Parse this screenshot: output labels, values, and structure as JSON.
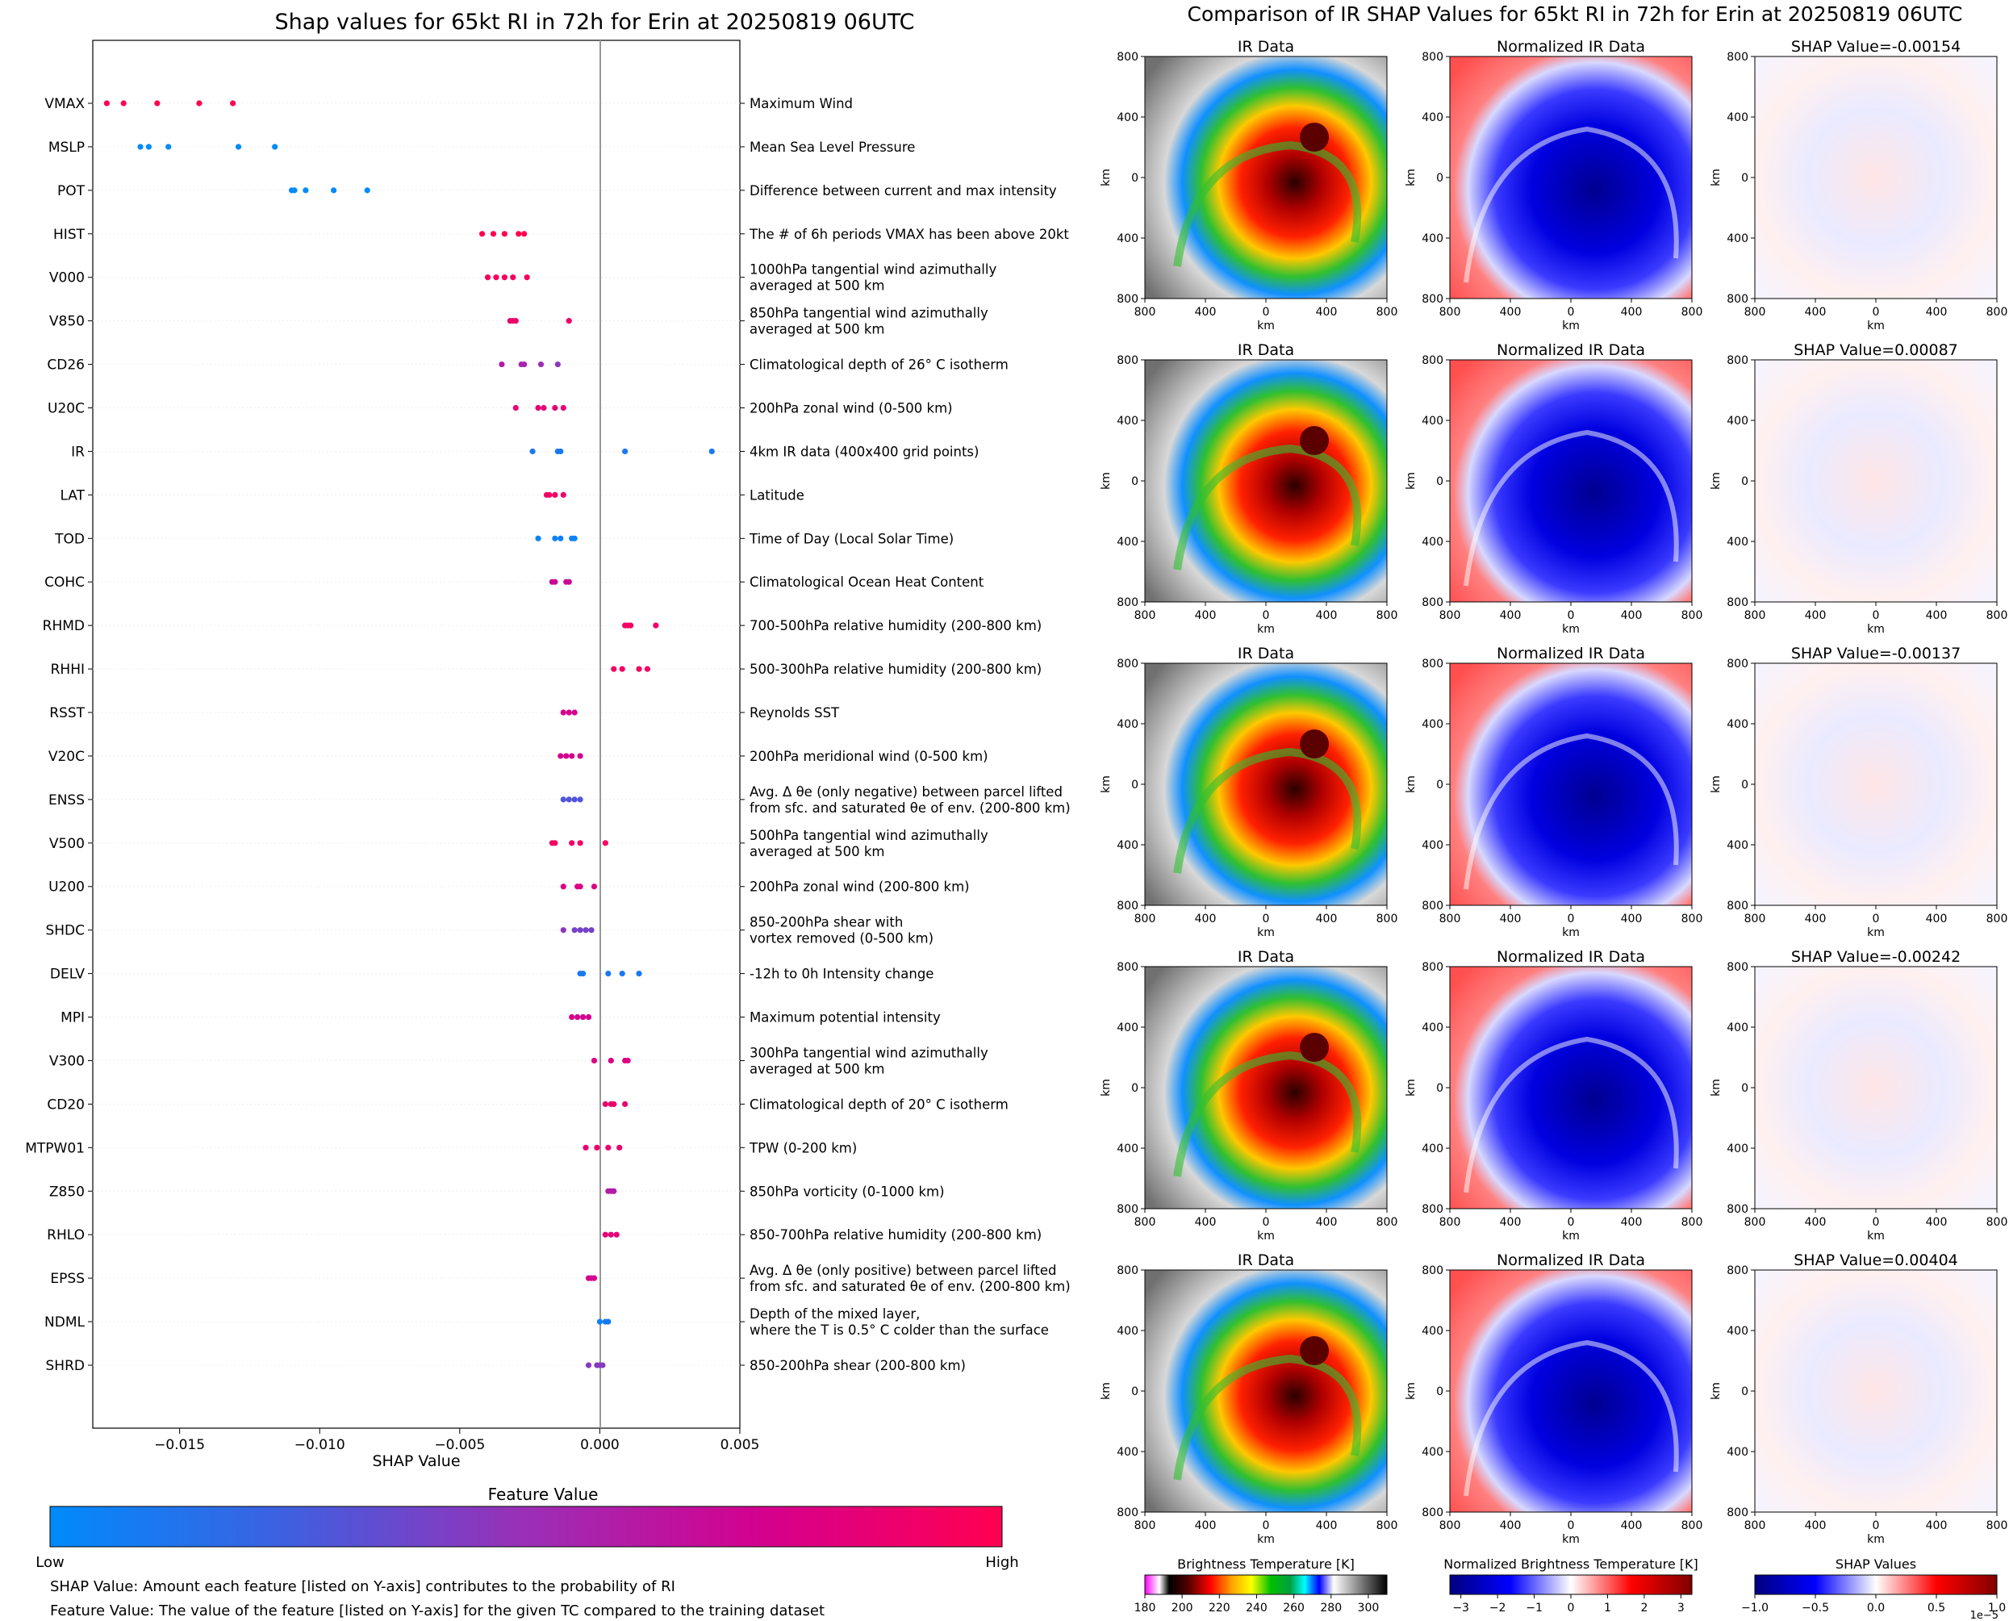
{
  "left_title": "Shap values for 65kt RI in 72h for Erin at 20250819 06UTC",
  "right_title": "Comparison of IR SHAP Values for 65kt RI in 72h for Erin at 20250819 06UTC",
  "chart_data": [
    {
      "type": "scatter",
      "title": "Shap values for 65kt RI in 72h for Erin at 20250819 06UTC",
      "xlabel": "SHAP Value",
      "xlim": [
        -0.0181,
        0.005
      ],
      "xticks": [
        "−0.015",
        "−0.010",
        "−0.005",
        "0.000",
        "0.005"
      ],
      "xtick_values": [
        -0.015,
        -0.01,
        -0.005,
        0.0,
        0.005
      ],
      "grid": false,
      "colorbar": {
        "title": "Feature Value",
        "low": "Low",
        "high": "High",
        "colors": [
          "#008bfb",
          "#3f5fe0",
          "#9b2fb6",
          "#d5008e",
          "#ff0051"
        ]
      },
      "features": [
        {
          "name": "VMAX",
          "desc": [
            "Maximum Wind"
          ],
          "points": [
            [
              -0.0176,
              1.0
            ],
            [
              -0.017,
              1.0
            ],
            [
              -0.0158,
              1.0
            ],
            [
              -0.0143,
              1.0
            ],
            [
              -0.0131,
              1.0
            ]
          ]
        },
        {
          "name": "MSLP",
          "desc": [
            "Mean Sea Level Pressure"
          ],
          "points": [
            [
              -0.0164,
              0.0
            ],
            [
              -0.0161,
              0.0
            ],
            [
              -0.0154,
              0.0
            ],
            [
              -0.0129,
              0.0
            ],
            [
              -0.0116,
              0.0
            ]
          ]
        },
        {
          "name": "POT",
          "desc": [
            "Difference between current and max intensity"
          ],
          "points": [
            [
              -0.011,
              0.0
            ],
            [
              -0.0109,
              0.0
            ],
            [
              -0.0105,
              0.0
            ],
            [
              -0.0095,
              0.0
            ],
            [
              -0.0083,
              0.0
            ]
          ]
        },
        {
          "name": "HIST",
          "desc": [
            "The # of 6h periods VMAX has been above 20kt"
          ],
          "points": [
            [
              -0.0042,
              1.0
            ],
            [
              -0.0038,
              1.0
            ],
            [
              -0.0034,
              1.0
            ],
            [
              -0.0029,
              1.0
            ],
            [
              -0.0027,
              1.0
            ]
          ]
        },
        {
          "name": "V000",
          "desc": [
            "1000hPa tangential wind azimuthally",
            "averaged at 500 km"
          ],
          "points": [
            [
              -0.004,
              0.95
            ],
            [
              -0.0037,
              0.95
            ],
            [
              -0.0034,
              0.95
            ],
            [
              -0.0031,
              0.95
            ],
            [
              -0.0026,
              0.95
            ]
          ]
        },
        {
          "name": "V850",
          "desc": [
            "850hPa tangential wind azimuthally",
            "averaged at 500 km"
          ],
          "points": [
            [
              -0.0032,
              0.9
            ],
            [
              -0.0031,
              0.9
            ],
            [
              -0.003,
              0.9
            ],
            [
              -0.0011,
              0.9
            ]
          ]
        },
        {
          "name": "CD26",
          "desc": [
            "Climatological depth of 26° C isotherm"
          ],
          "points": [
            [
              -0.0035,
              0.6
            ],
            [
              -0.0028,
              0.55
            ],
            [
              -0.0027,
              0.55
            ],
            [
              -0.0021,
              0.5
            ],
            [
              -0.0015,
              0.45
            ]
          ]
        },
        {
          "name": "U20C",
          "desc": [
            "200hPa zonal wind (0-500 km)"
          ],
          "points": [
            [
              -0.003,
              0.85
            ],
            [
              -0.0022,
              0.85
            ],
            [
              -0.002,
              0.85
            ],
            [
              -0.0016,
              0.85
            ],
            [
              -0.0013,
              0.85
            ]
          ]
        },
        {
          "name": "IR",
          "desc": [
            "4km IR data (400x400 grid points)"
          ],
          "points": [
            [
              -0.0024,
              0.1
            ],
            [
              -0.0015,
              0.1
            ],
            [
              -0.0014,
              0.1
            ],
            [
              0.0009,
              0.1
            ],
            [
              0.004,
              0.1
            ]
          ]
        },
        {
          "name": "LAT",
          "desc": [
            "Latitude"
          ],
          "points": [
            [
              -0.0019,
              0.92
            ],
            [
              -0.0018,
              0.92
            ],
            [
              -0.0016,
              0.92
            ],
            [
              -0.0013,
              0.92
            ]
          ]
        },
        {
          "name": "TOD",
          "desc": [
            "Time of Day (Local Solar Time)"
          ],
          "points": [
            [
              -0.0022,
              0.05
            ],
            [
              -0.0016,
              0.05
            ],
            [
              -0.0014,
              0.05
            ],
            [
              -0.001,
              0.05
            ],
            [
              -0.0009,
              0.05
            ]
          ]
        },
        {
          "name": "COHC",
          "desc": [
            "Climatological Ocean Heat Content"
          ],
          "points": [
            [
              -0.0017,
              0.7
            ],
            [
              -0.0016,
              0.7
            ],
            [
              -0.0012,
              0.7
            ],
            [
              -0.0011,
              0.7
            ]
          ]
        },
        {
          "name": "RHMD",
          "desc": [
            "700-500hPa relative humidity (200-800 km)"
          ],
          "points": [
            [
              0.0009,
              0.93
            ],
            [
              0.001,
              0.93
            ],
            [
              0.0011,
              0.93
            ],
            [
              0.002,
              0.93
            ]
          ]
        },
        {
          "name": "RHHI",
          "desc": [
            "500-300hPa relative humidity (200-800 km)"
          ],
          "points": [
            [
              0.0005,
              0.93
            ],
            [
              0.0008,
              0.93
            ],
            [
              0.0014,
              0.93
            ],
            [
              0.0017,
              0.93
            ]
          ]
        },
        {
          "name": "RSST",
          "desc": [
            "Reynolds SST"
          ],
          "points": [
            [
              -0.0013,
              0.75
            ],
            [
              -0.0011,
              0.75
            ],
            [
              -0.0009,
              0.75
            ]
          ]
        },
        {
          "name": "V20C",
          "desc": [
            "200hPa meridional wind (0-500 km)"
          ],
          "points": [
            [
              -0.0014,
              0.75
            ],
            [
              -0.0012,
              0.75
            ],
            [
              -0.001,
              0.75
            ],
            [
              -0.0007,
              0.75
            ]
          ]
        },
        {
          "name": "ENSS",
          "desc": [
            "Avg. Δ θe (only negative) between parcel lifted",
            "from sfc. and saturated θe of env. (200-800 km)"
          ],
          "points": [
            [
              -0.0013,
              0.3
            ],
            [
              -0.0011,
              0.3
            ],
            [
              -0.0009,
              0.3
            ],
            [
              -0.0007,
              0.3
            ]
          ]
        },
        {
          "name": "V500",
          "desc": [
            "500hPa tangential wind azimuthally",
            "averaged at 500 km"
          ],
          "points": [
            [
              -0.0017,
              0.93
            ],
            [
              -0.0016,
              0.93
            ],
            [
              -0.001,
              0.93
            ],
            [
              -0.0007,
              0.93
            ],
            [
              0.0002,
              0.93
            ]
          ]
        },
        {
          "name": "U200",
          "desc": [
            "200hPa zonal wind (200-800 km)"
          ],
          "points": [
            [
              -0.0013,
              0.8
            ],
            [
              -0.0008,
              0.8
            ],
            [
              -0.0007,
              0.8
            ],
            [
              -0.0002,
              0.8
            ]
          ]
        },
        {
          "name": "SHDC",
          "desc": [
            "850-200hPa shear with",
            "vortex removed (0-500 km)"
          ],
          "points": [
            [
              -0.0013,
              0.45
            ],
            [
              -0.0009,
              0.4
            ],
            [
              -0.0007,
              0.4
            ],
            [
              -0.0005,
              0.4
            ],
            [
              -0.0003,
              0.4
            ]
          ]
        },
        {
          "name": "DELV",
          "desc": [
            "-12h to 0h Intensity change"
          ],
          "points": [
            [
              -0.0007,
              0.1
            ],
            [
              -0.0006,
              0.1
            ],
            [
              0.0003,
              0.1
            ],
            [
              0.0008,
              0.1
            ],
            [
              0.0014,
              0.1
            ]
          ]
        },
        {
          "name": "MPI",
          "desc": [
            "Maximum potential intensity"
          ],
          "points": [
            [
              -0.001,
              0.75
            ],
            [
              -0.0008,
              0.75
            ],
            [
              -0.0006,
              0.75
            ],
            [
              -0.0004,
              0.75
            ]
          ]
        },
        {
          "name": "V300",
          "desc": [
            "300hPa tangential wind azimuthally",
            "averaged at 500 km"
          ],
          "points": [
            [
              -0.0002,
              0.8
            ],
            [
              0.0004,
              0.8
            ],
            [
              0.0009,
              0.8
            ],
            [
              0.001,
              0.8
            ]
          ]
        },
        {
          "name": "CD20",
          "desc": [
            "Climatological depth of 20° C isotherm"
          ],
          "points": [
            [
              0.0002,
              0.88
            ],
            [
              0.0004,
              0.88
            ],
            [
              0.0005,
              0.88
            ],
            [
              0.0009,
              0.88
            ]
          ]
        },
        {
          "name": "MTPW01",
          "desc": [
            "TPW (0-200 km)"
          ],
          "points": [
            [
              -0.0005,
              0.88
            ],
            [
              -0.0001,
              0.88
            ],
            [
              0.0003,
              0.88
            ],
            [
              0.0007,
              0.88
            ]
          ]
        },
        {
          "name": "Z850",
          "desc": [
            "850hPa vorticity (0-1000 km)"
          ],
          "points": [
            [
              0.0003,
              0.6
            ],
            [
              0.0004,
              0.6
            ],
            [
              0.0005,
              0.6
            ]
          ]
        },
        {
          "name": "RHLO",
          "desc": [
            "850-700hPa relative humidity (200-800 km)"
          ],
          "points": [
            [
              0.0002,
              0.85
            ],
            [
              0.0004,
              0.85
            ],
            [
              0.0006,
              0.85
            ]
          ]
        },
        {
          "name": "EPSS",
          "desc": [
            "Avg. Δ θe (only positive) between parcel lifted",
            "from sfc. and saturated θe of env. (200-800 km)"
          ],
          "points": [
            [
              -0.0004,
              0.75
            ],
            [
              -0.0003,
              0.75
            ],
            [
              -0.0002,
              0.75
            ]
          ]
        },
        {
          "name": "NDML",
          "desc": [
            "Depth of the mixed layer,",
            "where the T is 0.5° C colder than the surface"
          ],
          "points": [
            [
              0.0,
              0.05
            ],
            [
              0.0002,
              0.1
            ],
            [
              0.0003,
              0.1
            ]
          ]
        },
        {
          "name": "SHRD",
          "desc": [
            "850-200hPa shear (200-800 km)"
          ],
          "points": [
            [
              -0.0004,
              0.45
            ],
            [
              -0.0001,
              0.45
            ],
            [
              0.0,
              0.45
            ],
            [
              0.0001,
              0.45
            ]
          ]
        }
      ]
    },
    {
      "type": "heatmap",
      "title": "Comparison of IR SHAP Values for 65kt RI in 72h for Erin at 20250819 06UTC",
      "columns": [
        "IR Data",
        "Normalized IR Data",
        "SHAP"
      ],
      "rows": [
        {
          "shap_title": "SHAP Value=-0.00154"
        },
        {
          "shap_title": "SHAP Value=0.00087"
        },
        {
          "shap_title": "SHAP Value=-0.00137"
        },
        {
          "shap_title": "SHAP Value=-0.00242"
        },
        {
          "shap_title": "SHAP Value=0.00404"
        }
      ],
      "axis_unit": "km",
      "ticks": [
        "800",
        "400",
        "0",
        "400",
        "800"
      ],
      "colorbars": [
        {
          "title": "Brightness Temperature [K]",
          "ticks": [
            "180",
            "200",
            "220",
            "240",
            "260",
            "280",
            "300"
          ],
          "range": [
            180,
            310
          ]
        },
        {
          "title": "Normalized Brightness Temperature [K]",
          "ticks": [
            "−3",
            "−2",
            "−1",
            "0",
            "1",
            "2",
            "3"
          ],
          "range": [
            -3.3,
            3.3
          ]
        },
        {
          "title": "SHAP Values",
          "ticks": [
            "−1.0",
            "−0.5",
            "0.0",
            "0.5",
            "1.0"
          ],
          "range": [
            -1,
            1
          ],
          "multiplier": "1e−5"
        }
      ]
    }
  ],
  "footnotes": [
    "SHAP Value: Amount each feature [listed on Y-axis] contributes to the probability of RI",
    "Feature Value: The value of the feature [listed on Y-axis] for the given TC compared to the training dataset"
  ]
}
